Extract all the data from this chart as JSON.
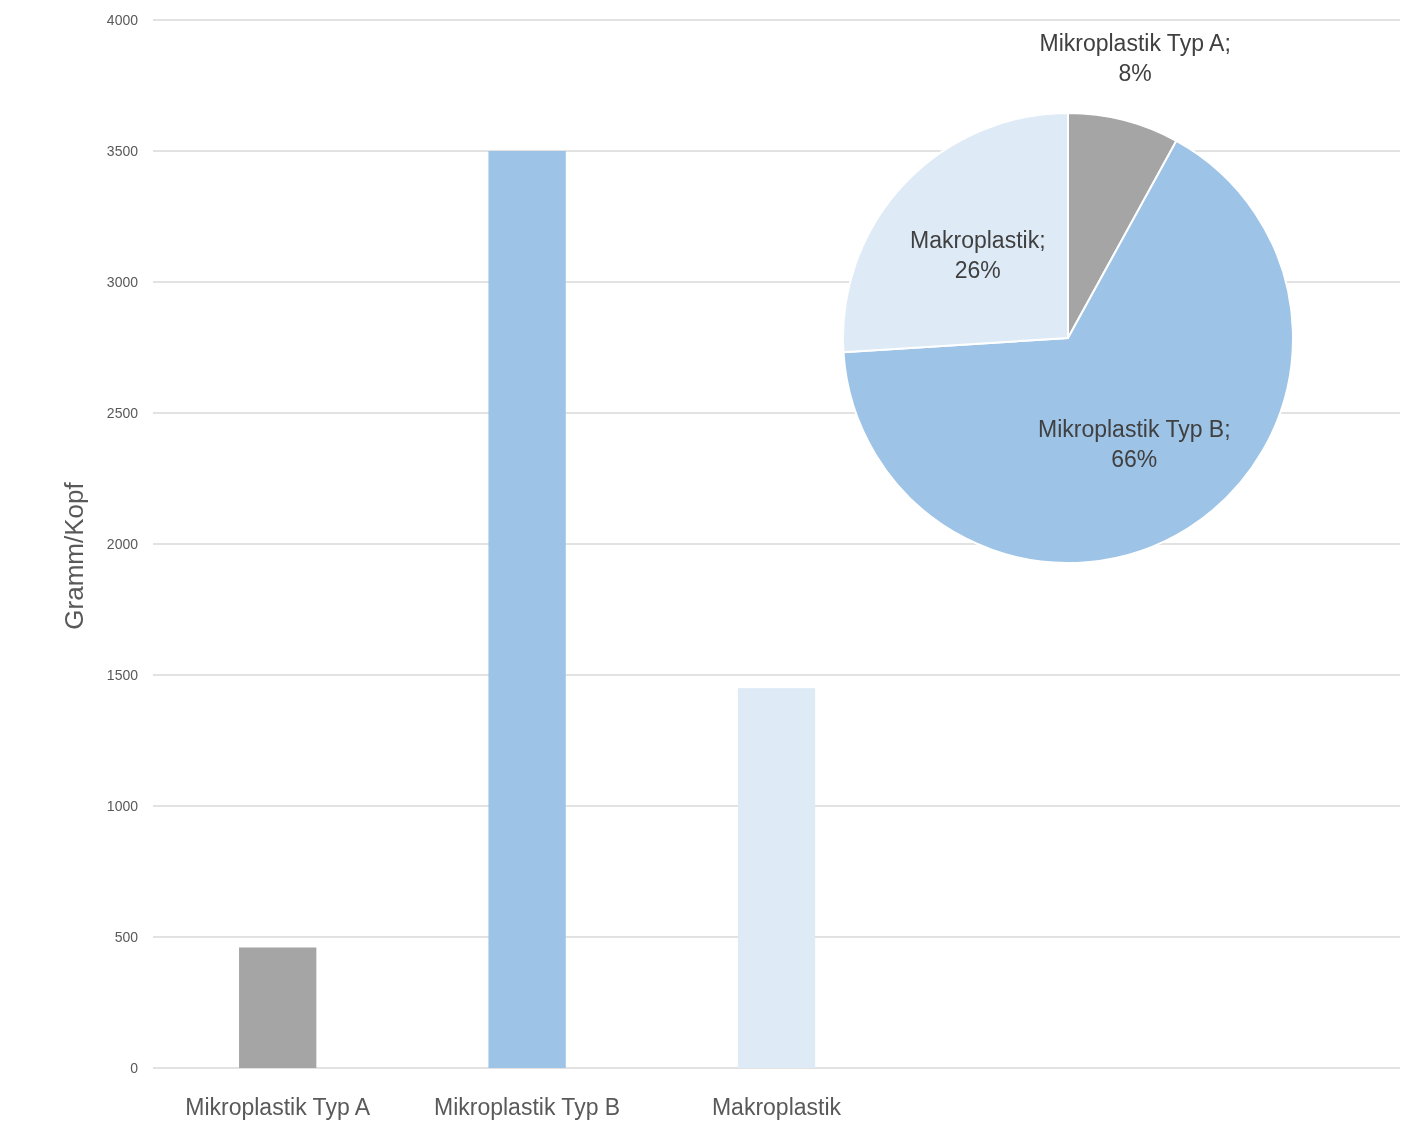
{
  "chart_data": [
    {
      "type": "bar",
      "ylabel": "Gramm/Kopf",
      "categories": [
        "Mikroplastik Typ A",
        "Mikroplastik Typ B",
        "Makroplastik"
      ],
      "values": [
        460,
        3500,
        1450
      ],
      "colors": [
        "#a5a5a5",
        "#9dc3e6",
        "#deebf7"
      ],
      "ylim": [
        0,
        4000
      ],
      "yticks": [
        0,
        500,
        1000,
        1500,
        2000,
        2500,
        3000,
        3500,
        4000
      ],
      "grid": "y",
      "legend": false
    },
    {
      "type": "pie",
      "categories": [
        "Mikroplastik Typ A",
        "Mikroplastik Typ B",
        "Makroplastik"
      ],
      "values": [
        8,
        66,
        26
      ],
      "colors": [
        "#a5a5a5",
        "#9dc3e6",
        "#deebf7"
      ],
      "value_labels": [
        "; 8%",
        "; 66%",
        "; 26%"
      ],
      "legend": false
    }
  ]
}
